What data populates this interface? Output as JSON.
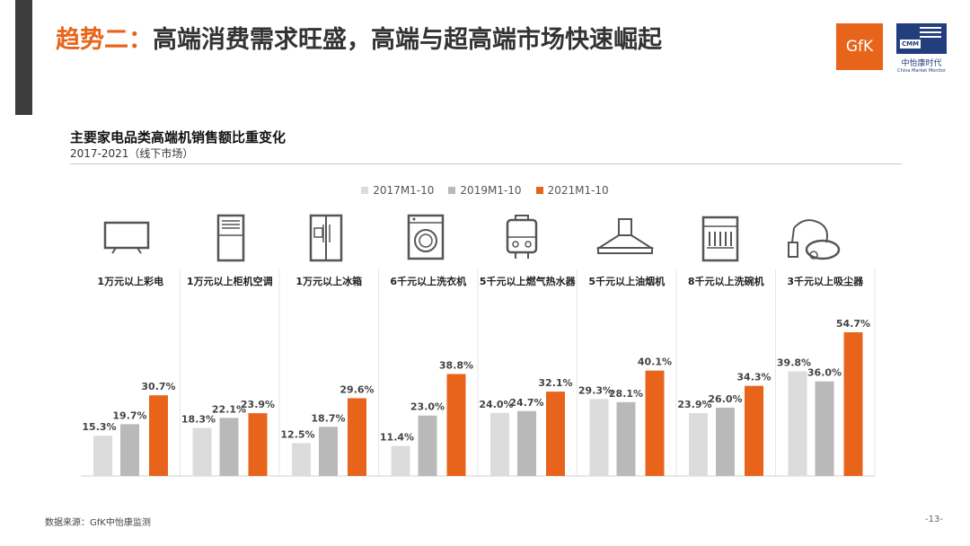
{
  "header": {
    "headline_accent": "趋势二：",
    "headline_main": "高端消费需求旺盛，高端与超高端市场快速崛起",
    "logo_gfk": "GfK",
    "logo_cmm_tag": "CMM",
    "logo_cmm_name": "中怡康时代",
    "logo_cmm_sub": "China Market Monitor"
  },
  "chart_data": {
    "type": "bar",
    "title": "主要家电品类高端机销售额比重变化",
    "subtitle": "2017-2021（线下市场）",
    "categories": [
      "1万元以上彩电",
      "1万元以上柜机空调",
      "1万元以上冰箱",
      "6千元以上洗衣机",
      "5千元以上燃气热水器",
      "5千元以上油烟机",
      "8千元以上洗碗机",
      "3千元以上吸尘器"
    ],
    "series": [
      {
        "name": "2017M1-10",
        "color": "#dcdcdc",
        "values": [
          15.3,
          18.3,
          12.5,
          11.4,
          24.0,
          29.3,
          23.9,
          39.8
        ],
        "labels": [
          "15.3%",
          "18.3%",
          "12.5%",
          "11.4%",
          "24.0%",
          "29.3%",
          "23.9%",
          "39.8%"
        ]
      },
      {
        "name": "2019M1-10",
        "color": "#b9b9b9",
        "values": [
          19.7,
          22.1,
          18.7,
          23.0,
          24.7,
          28.1,
          26.0,
          36.0
        ],
        "labels": [
          "19.7%",
          "22.1%",
          "18.7%",
          "23.0%",
          "24.7%",
          "28.1%",
          "26.0%",
          "36.0%"
        ]
      },
      {
        "name": "2021M1-10",
        "color": "#e8641b",
        "values": [
          30.7,
          23.9,
          29.6,
          38.8,
          32.1,
          40.1,
          34.3,
          54.7
        ],
        "labels": [
          "30.7%",
          "23.9%",
          "29.6%",
          "38.8%",
          "32.1%",
          "40.1%",
          "34.3%",
          "54.7%"
        ]
      }
    ],
    "ylim": [
      0,
      60
    ],
    "legend_position": "top-center",
    "icons": [
      "tv-icon",
      "air-conditioner-icon",
      "refrigerator-icon",
      "washing-machine-icon",
      "water-heater-icon",
      "range-hood-icon",
      "dishwasher-icon",
      "vacuum-cleaner-icon"
    ]
  },
  "footer": {
    "source": "数据来源：GfK中怡康监测",
    "page": "-13-"
  }
}
